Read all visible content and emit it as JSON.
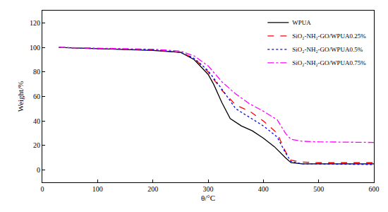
{
  "chart_data": {
    "type": "line",
    "x_label": "θ/°C",
    "y_label": "Weight/%",
    "xlim": [
      0,
      600
    ],
    "xticks": [
      0,
      100,
      200,
      300,
      400,
      500,
      600
    ],
    "ylim": [
      -10,
      130
    ],
    "yticks": [
      0,
      20,
      40,
      60,
      80,
      100,
      120
    ],
    "grid": false,
    "legend": "upper right",
    "series": [
      {
        "name": "WPUA",
        "color": "#000000",
        "line_style": "solid",
        "x": [
          30,
          100,
          150,
          200,
          250,
          275,
          300,
          310,
          325,
          340,
          360,
          380,
          400,
          420,
          440,
          450,
          470,
          500,
          600
        ],
        "values": [
          100,
          99,
          98,
          97.5,
          96,
          90,
          78,
          70,
          55,
          42,
          36,
          32,
          26,
          19,
          10,
          6,
          5,
          5,
          5
        ]
      },
      {
        "name": "SiO₂-NH₂-GO/WPUA0.25%",
        "color": "#ff0000",
        "line_style": "dash",
        "x": [
          30,
          100,
          200,
          250,
          275,
          300,
          325,
          350,
          375,
          400,
          425,
          440,
          450,
          470,
          500,
          600
        ],
        "values": [
          100,
          99,
          98,
          96,
          91,
          80,
          65,
          53,
          48,
          40,
          30,
          15,
          8,
          6.5,
          6,
          6
        ]
      },
      {
        "name": "SiO₂-NH₂-GO/WPUA0.5%",
        "color": "#0000ff",
        "line_style": "dot",
        "x": [
          30,
          100,
          200,
          250,
          275,
          300,
          325,
          350,
          375,
          400,
          425,
          440,
          450,
          470,
          500,
          600
        ],
        "values": [
          100,
          99,
          98,
          96,
          91,
          81,
          66,
          50,
          43,
          36,
          27,
          14,
          7,
          5,
          5,
          4.5
        ]
      },
      {
        "name": "SiO₂-NH₂-GO/WPUA0.75%",
        "color": "#ff00ff",
        "line_style": "dashdot",
        "x": [
          30,
          100,
          200,
          250,
          275,
          300,
          325,
          350,
          375,
          400,
          425,
          440,
          450,
          470,
          500,
          600
        ],
        "values": [
          100,
          99.5,
          98.5,
          97,
          93,
          85,
          72,
          62,
          54,
          48,
          41,
          30,
          25,
          23.5,
          23,
          22.5
        ]
      }
    ]
  }
}
